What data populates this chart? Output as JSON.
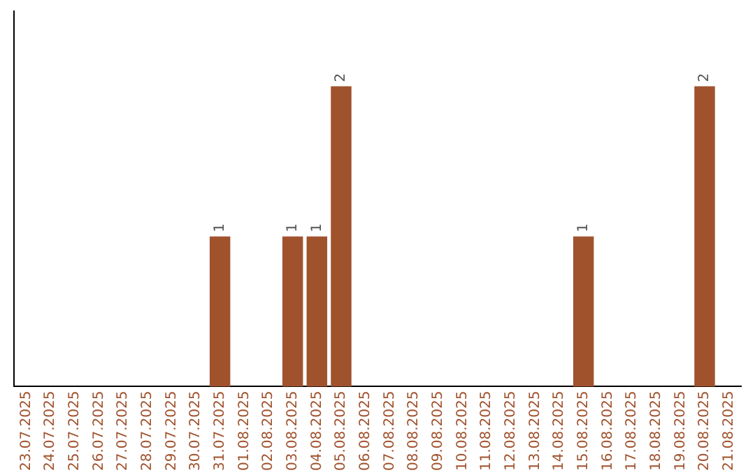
{
  "chart_data": {
    "type": "bar",
    "categories": [
      "23.07.2025",
      "24.07.2025",
      "25.07.2025",
      "26.07.2025",
      "27.07.2025",
      "28.07.2025",
      "29.07.2025",
      "30.07.2025",
      "31.07.2025",
      "01.08.2025",
      "02.08.2025",
      "03.08.2025",
      "04.08.2025",
      "05.08.2025",
      "06.08.2025",
      "07.08.2025",
      "08.08.2025",
      "09.08.2025",
      "10.08.2025",
      "11.08.2025",
      "12.08.2025",
      "13.08.2025",
      "14.08.2025",
      "15.08.2025",
      "16.08.2025",
      "17.08.2025",
      "18.08.2025",
      "19.08.2025",
      "20.08.2025",
      "21.08.2025"
    ],
    "values": [
      0,
      0,
      0,
      0,
      0,
      0,
      0,
      0,
      1,
      0,
      0,
      1,
      1,
      2,
      0,
      0,
      0,
      0,
      0,
      0,
      0,
      0,
      0,
      1,
      0,
      0,
      0,
      0,
      2,
      0
    ],
    "value_labels": [
      null,
      null,
      null,
      null,
      null,
      null,
      null,
      null,
      "1",
      null,
      null,
      "1",
      "1",
      "2",
      null,
      null,
      null,
      null,
      null,
      null,
      null,
      null,
      null,
      "1",
      null,
      null,
      null,
      null,
      "2",
      null
    ],
    "color": "#a0522d",
    "grid": false,
    "legend": false
  }
}
